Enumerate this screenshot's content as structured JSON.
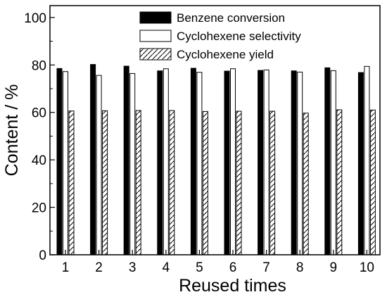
{
  "chart_data": {
    "type": "bar",
    "xlabel": "Reused times",
    "ylabel": "Content / %",
    "ylim": [
      0,
      105
    ],
    "yticks": [
      0,
      20,
      40,
      60,
      80,
      100
    ],
    "categories": [
      "1",
      "2",
      "3",
      "4",
      "5",
      "6",
      "7",
      "8",
      "9",
      "10"
    ],
    "series": [
      {
        "name": "Benzene conversion",
        "fill": "solid",
        "color": "#000000",
        "values": [
          78.5,
          80.2,
          79.5,
          77.5,
          78.6,
          77.4,
          77.7,
          77.5,
          78.8,
          76.8
        ]
      },
      {
        "name": "Cyclohexene selectivity",
        "fill": "hollow",
        "color": "#ffffff",
        "values": [
          77.2,
          75.6,
          76.4,
          78.4,
          76.9,
          78.4,
          77.9,
          77.0,
          77.6,
          79.4
        ]
      },
      {
        "name": "Cyclohexene yield",
        "fill": "hatched",
        "color": "#ffffff",
        "values": [
          60.6,
          60.7,
          60.8,
          60.8,
          60.4,
          60.5,
          60.5,
          59.7,
          61.1,
          61.0
        ]
      }
    ],
    "legend_position": "top-right",
    "grid": false
  }
}
